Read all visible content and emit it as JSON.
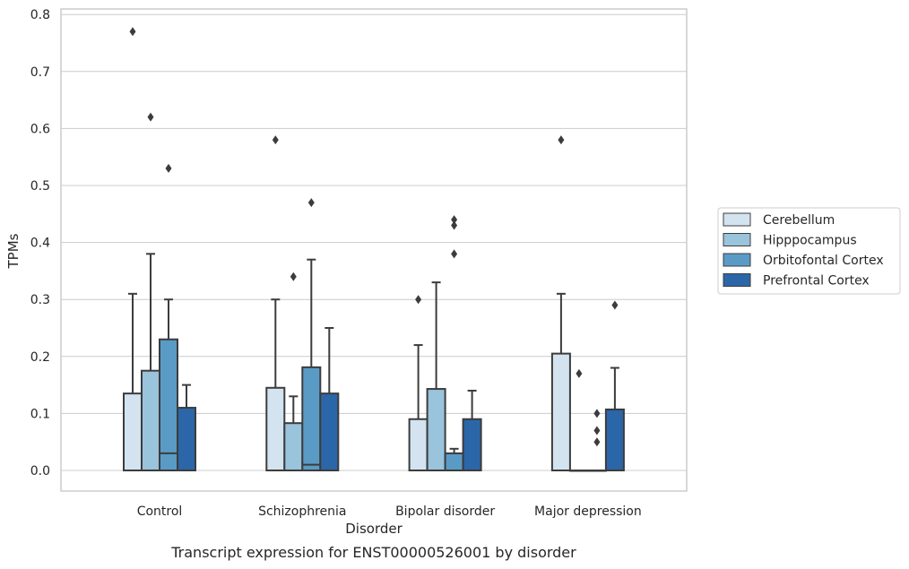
{
  "chart_data": {
    "type": "box",
    "title": "Transcript expression for ENST00000526001 by disorder",
    "xlabel": "Disorder",
    "ylabel": "TPMs",
    "ylim": [
      -0.04,
      0.81
    ],
    "yticks": [
      "0.0",
      "0.1",
      "0.2",
      "0.3",
      "0.4",
      "0.5",
      "0.6",
      "0.7",
      "0.8"
    ],
    "grid": true,
    "legend_position": "right",
    "categories": [
      "Control",
      "Schizophrenia",
      "Bipolar disorder",
      "Major depression"
    ],
    "series": [
      {
        "name": "Cerebellum",
        "color": "#d3e3f0",
        "boxes": [
          {
            "min": 0.0,
            "q1": 0.0,
            "median": 0.0,
            "q3": 0.135,
            "max": 0.31,
            "outliers": [
              0.77
            ]
          },
          {
            "min": 0.0,
            "q1": 0.0,
            "median": 0.0,
            "q3": 0.145,
            "max": 0.3,
            "outliers": [
              0.58
            ]
          },
          {
            "min": 0.0,
            "q1": 0.0,
            "median": 0.0,
            "q3": 0.09,
            "max": 0.22,
            "outliers": [
              0.3
            ]
          },
          {
            "min": 0.0,
            "q1": 0.0,
            "median": 0.0,
            "q3": 0.205,
            "max": 0.31,
            "outliers": [
              0.58
            ]
          }
        ]
      },
      {
        "name": "Hipppocampus",
        "color": "#9ac3dc",
        "boxes": [
          {
            "min": 0.0,
            "q1": 0.0,
            "median": 0.0,
            "q3": 0.175,
            "max": 0.38,
            "outliers": [
              0.62
            ]
          },
          {
            "min": 0.0,
            "q1": 0.0,
            "median": 0.0,
            "q3": 0.083,
            "max": 0.13,
            "outliers": [
              0.34
            ]
          },
          {
            "min": 0.0,
            "q1": 0.0,
            "median": 0.0,
            "q3": 0.143,
            "max": 0.33,
            "outliers": []
          },
          {
            "min": 0.0,
            "q1": 0.0,
            "median": 0.0,
            "q3": 0.0,
            "max": 0.0,
            "outliers": [
              0.17
            ]
          }
        ]
      },
      {
        "name": "Orbitofontal Cortex",
        "color": "#5a9bc6",
        "boxes": [
          {
            "min": 0.0,
            "q1": 0.0,
            "median": 0.03,
            "q3": 0.23,
            "max": 0.3,
            "outliers": [
              0.53
            ]
          },
          {
            "min": 0.0,
            "q1": 0.0,
            "median": 0.01,
            "q3": 0.181,
            "max": 0.37,
            "outliers": [
              0.47
            ]
          },
          {
            "min": 0.0,
            "q1": 0.0,
            "median": 0.0,
            "q3": 0.03,
            "max": 0.038,
            "outliers": [
              0.38,
              0.43,
              0.44
            ]
          },
          {
            "min": 0.0,
            "q1": 0.0,
            "median": 0.0,
            "q3": 0.0,
            "max": 0.0,
            "outliers": [
              0.05,
              0.07,
              0.1
            ]
          }
        ]
      },
      {
        "name": "Prefrontal Cortex",
        "color": "#2b66a8",
        "boxes": [
          {
            "min": 0.0,
            "q1": 0.0,
            "median": 0.0,
            "q3": 0.11,
            "max": 0.15,
            "outliers": []
          },
          {
            "min": 0.0,
            "q1": 0.0,
            "median": 0.0,
            "q3": 0.135,
            "max": 0.25,
            "outliers": []
          },
          {
            "min": 0.0,
            "q1": 0.0,
            "median": 0.0,
            "q3": 0.09,
            "max": 0.14,
            "outliers": []
          },
          {
            "min": 0.0,
            "q1": 0.0,
            "median": 0.0,
            "q3": 0.107,
            "max": 0.18,
            "outliers": [
              0.29
            ]
          }
        ]
      }
    ]
  }
}
